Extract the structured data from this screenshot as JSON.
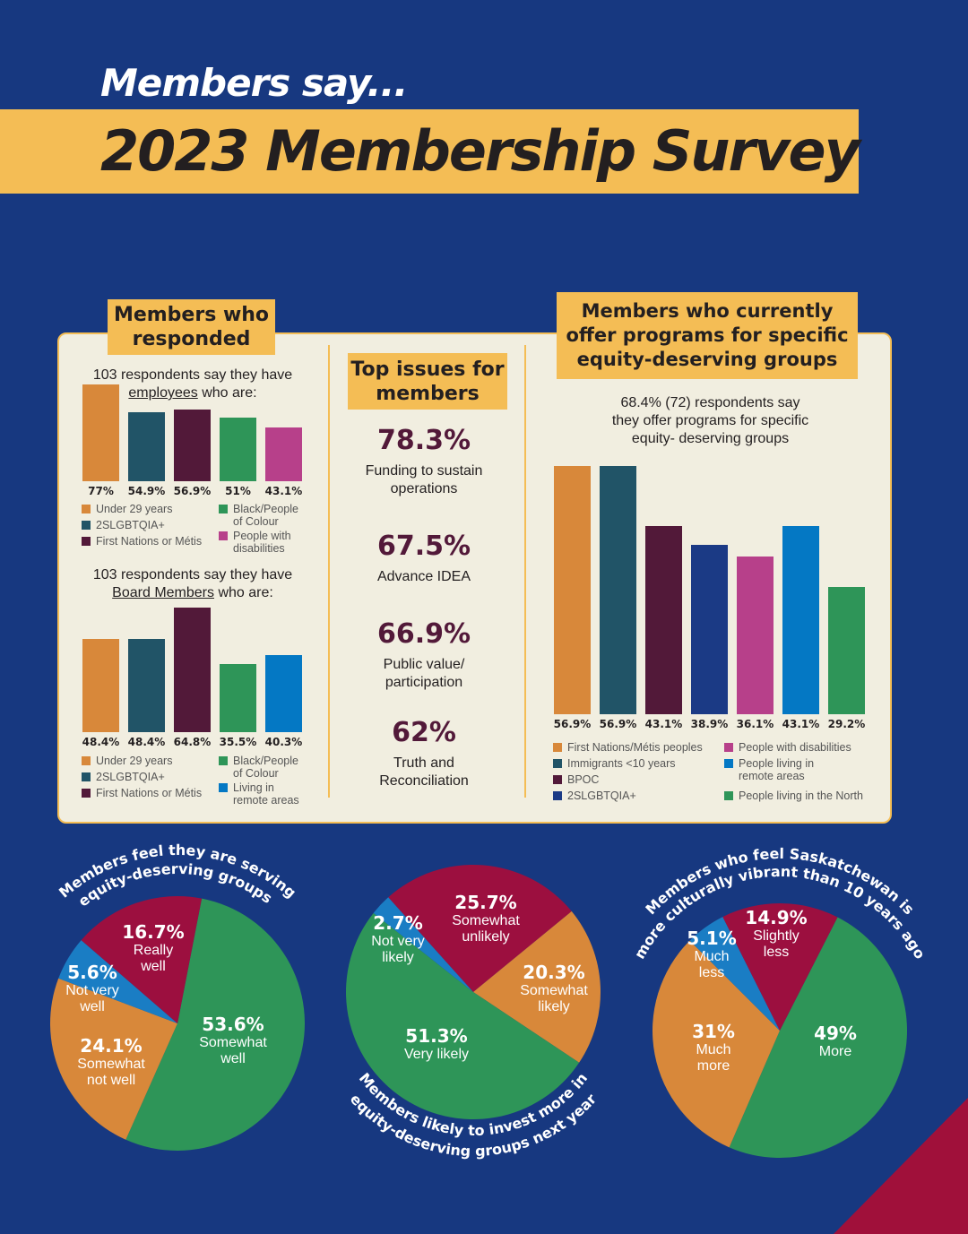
{
  "header": {
    "kicker": "Members say...",
    "title": "2023 Membership Survey"
  },
  "responded": {
    "heading": "Members who responded"
  },
  "top_issues": {
    "heading": "Top issues for members",
    "items": [
      {
        "value": "78.3%",
        "label": "Funding to sustain\noperations"
      },
      {
        "value": "67.5%",
        "label": "Advance IDEA"
      },
      {
        "value": "66.9%",
        "label": "Public value/\nparticipation"
      },
      {
        "value": "62%",
        "label": "Truth and\nReconciliation"
      }
    ]
  },
  "programs": {
    "heading": "Members who currently offer programs for specific equity-deserving groups",
    "subtitle": "68.4% (72) respondents say\nthey offer programs for specific\nequity- deserving groups"
  },
  "chart_data": [
    {
      "type": "bar",
      "title_parts": [
        "103 respondents say they have",
        "employees",
        "who are:"
      ],
      "categories": [
        "Under 29 years",
        "2SLGBTQIA+",
        "First Nations or Métis",
        "Black/People\nof Colour",
        "People with\ndisabilities"
      ],
      "values": [
        77,
        54.9,
        56.9,
        51,
        43.1
      ],
      "labels": [
        "77%",
        "54.9%",
        "56.9%",
        "51%",
        "43.1%"
      ],
      "colors": [
        "#d8883a",
        "#215467",
        "#521939",
        "#2e9558",
        "#b7408a"
      ]
    },
    {
      "type": "bar",
      "title_parts": [
        "103 respondents say they have",
        "Board Members",
        "who are:"
      ],
      "categories": [
        "Under 29 years",
        "2SLGBTQIA+",
        "First Nations or Métis",
        "Black/People\nof Colour",
        "Living in\nremote areas"
      ],
      "values": [
        48.4,
        48.4,
        64.8,
        35.5,
        40.3
      ],
      "labels": [
        "48.4%",
        "48.4%",
        "64.8%",
        "35.5%",
        "40.3%"
      ],
      "colors": [
        "#d8883a",
        "#215467",
        "#521939",
        "#2e9558",
        "#0478c4"
      ]
    },
    {
      "type": "bar",
      "categories": [
        "First Nations/Métis peoples",
        "Immigrants <10 years",
        "BPOC",
        "2SLGBTQIA+",
        "People with disabilities",
        "People living in\nremote areas",
        "People living in the North"
      ],
      "values": [
        56.9,
        56.9,
        43.1,
        38.9,
        36.1,
        43.1,
        29.2
      ],
      "labels": [
        "56.9%",
        "56.9%",
        "43.1%",
        "38.9%",
        "36.1%",
        "43.1%",
        "29.2%"
      ],
      "colors": [
        "#d8883a",
        "#215467",
        "#521939",
        "#1b3a85",
        "#b7408a",
        "#0478c4",
        "#2e9558"
      ]
    },
    {
      "type": "pie",
      "title": [
        "Members feel they are serving",
        "equity-deserving groups"
      ],
      "slices": [
        {
          "label": "Somewhat\nwell",
          "value": 53.6,
          "text": "53.6%",
          "color": "#2e9558"
        },
        {
          "label": "Somewhat\nnot well",
          "value": 24.1,
          "text": "24.1%",
          "color": "#d8883a"
        },
        {
          "label": "Not very\nwell",
          "value": 5.6,
          "text": "5.6%",
          "color": "#1a7dc4"
        },
        {
          "label": "Really\nwell",
          "value": 16.7,
          "text": "16.7%",
          "color": "#9c0f3f"
        }
      ]
    },
    {
      "type": "pie",
      "title": [
        "Members likely to invest more in",
        "equity-deserving groups next year"
      ],
      "slices": [
        {
          "label": "Somewhat\nunlikely",
          "value": 25.7,
          "text": "25.7%",
          "color": "#9c0f3f"
        },
        {
          "label": "Somewhat\nlikely",
          "value": 20.3,
          "text": "20.3%",
          "color": "#d8883a"
        },
        {
          "label": "Very likely",
          "value": 51.3,
          "text": "51.3%",
          "color": "#2e9558"
        },
        {
          "label": "Not very\nlikely",
          "value": 2.7,
          "text": "2.7%",
          "color": "#1a7dc4"
        }
      ]
    },
    {
      "type": "pie",
      "title": [
        "Members who feel Saskatchewan is",
        "more culturally vibrant than 10 years ago"
      ],
      "slices": [
        {
          "label": "More",
          "value": 49,
          "text": "49%",
          "color": "#2e9558"
        },
        {
          "label": "Much\nmore",
          "value": 31,
          "text": "31%",
          "color": "#d8883a"
        },
        {
          "label": "Much\nless",
          "value": 5.1,
          "text": "5.1%",
          "color": "#1a7dc4"
        },
        {
          "label": "Slightly\nless",
          "value": 14.9,
          "text": "14.9%",
          "color": "#9c0f3f"
        }
      ]
    }
  ]
}
